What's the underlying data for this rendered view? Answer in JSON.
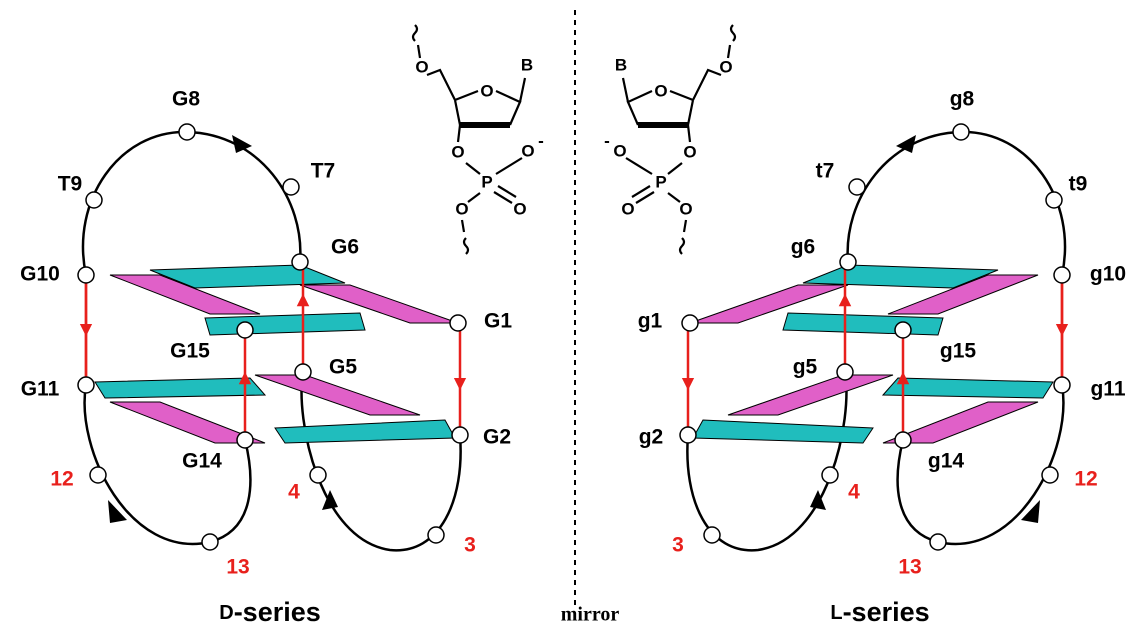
{
  "left": {
    "nodes": [
      {
        "label": "G1",
        "color": "#000000"
      },
      {
        "label": "G2",
        "color": "#000000"
      },
      {
        "label": "3",
        "color": "#e8201c"
      },
      {
        "label": "4",
        "color": "#e8201c"
      },
      {
        "label": "G5",
        "color": "#000000"
      },
      {
        "label": "G6",
        "color": "#000000"
      },
      {
        "label": "T7",
        "color": "#000000"
      },
      {
        "label": "G8",
        "color": "#000000"
      },
      {
        "label": "T9",
        "color": "#000000"
      },
      {
        "label": "G10",
        "color": "#000000"
      },
      {
        "label": "G11",
        "color": "#000000"
      },
      {
        "label": "12",
        "color": "#e8201c"
      },
      {
        "label": "13",
        "color": "#e8201c"
      },
      {
        "label": "G14",
        "color": "#000000"
      },
      {
        "label": "G15",
        "color": "#000000"
      }
    ],
    "atoms": [
      "O",
      "B",
      "O",
      "O",
      "O",
      "-",
      "P",
      "O",
      "O"
    ],
    "caption": {
      "prefix": "D",
      "suffix": "-series"
    }
  },
  "right": {
    "nodes": [
      {
        "label": "g1",
        "color": "#000000"
      },
      {
        "label": "g2",
        "color": "#000000"
      },
      {
        "label": "3",
        "color": "#e8201c"
      },
      {
        "label": "4",
        "color": "#e8201c"
      },
      {
        "label": "g5",
        "color": "#000000"
      },
      {
        "label": "g6",
        "color": "#000000"
      },
      {
        "label": "t7",
        "color": "#000000"
      },
      {
        "label": "g8",
        "color": "#000000"
      },
      {
        "label": "t9",
        "color": "#000000"
      },
      {
        "label": "g10",
        "color": "#000000"
      },
      {
        "label": "g11",
        "color": "#000000"
      },
      {
        "label": "12",
        "color": "#e8201c"
      },
      {
        "label": "13",
        "color": "#e8201c"
      },
      {
        "label": "g14",
        "color": "#000000"
      },
      {
        "label": "g15",
        "color": "#000000"
      }
    ],
    "atoms": [
      "O",
      "B",
      "O",
      "O",
      "O",
      "-",
      "P",
      "O",
      "O"
    ],
    "caption": {
      "prefix": "L",
      "suffix": "-series"
    }
  },
  "divider": {
    "label": "mirror"
  }
}
